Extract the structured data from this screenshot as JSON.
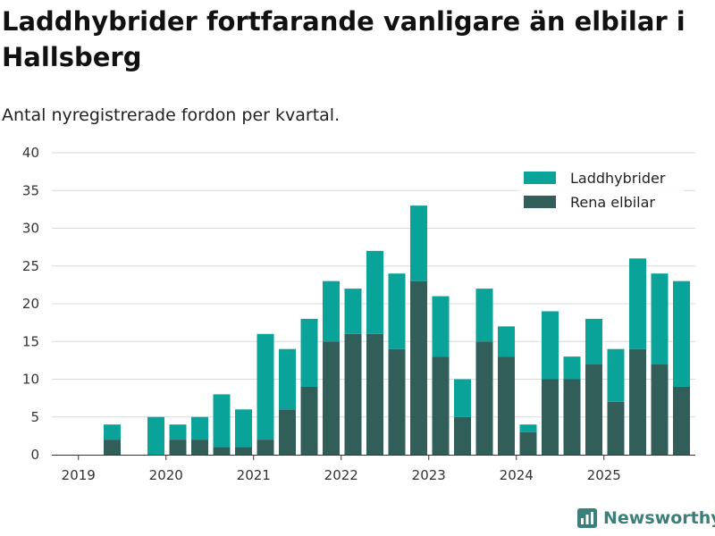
{
  "title": "Laddhybrider fortfarande vanligare än elbilar i Hallsberg",
  "subtitle": "Antal nyregistrerade fordon per kvartal.",
  "brand": "Newsworthy",
  "colors": {
    "laddhybrider": "#0aa39a",
    "elbilar": "#325e5a",
    "grid": "#d9d9d9",
    "axis": "#333333",
    "brand": "#3a7f79"
  },
  "chart_data": {
    "type": "bar",
    "stacked": true,
    "categories": [
      "2019 Q1",
      "2019 Q2",
      "2019 Q3",
      "2019 Q4",
      "2020 Q1",
      "2020 Q2",
      "2020 Q3",
      "2020 Q4",
      "2021 Q1",
      "2021 Q2",
      "2021 Q3",
      "2021 Q4",
      "2022 Q1",
      "2022 Q2",
      "2022 Q3",
      "2022 Q4",
      "2023 Q1",
      "2023 Q2",
      "2023 Q3",
      "2023 Q4",
      "2024 Q1",
      "2024 Q2",
      "2024 Q3",
      "2024 Q4",
      "2025 Q1",
      "2025 Q2",
      "2025 Q3",
      "2025 Q4"
    ],
    "series": [
      {
        "name": "Rena elbilar",
        "values": [
          0,
          2,
          0,
          0,
          2,
          2,
          1,
          1,
          2,
          6,
          9,
          15,
          16,
          16,
          14,
          23,
          13,
          5,
          15,
          13,
          3,
          10,
          10,
          12,
          7,
          14,
          12,
          9
        ]
      },
      {
        "name": "Laddhybrider",
        "values": [
          0,
          2,
          0,
          5,
          2,
          3,
          7,
          5,
          14,
          8,
          9,
          8,
          6,
          11,
          10,
          10,
          8,
          5,
          7,
          4,
          1,
          9,
          3,
          6,
          7,
          12,
          12,
          14
        ]
      }
    ],
    "xticks": [
      {
        "label": "2019",
        "pos": 0
      },
      {
        "label": "2020",
        "pos": 4
      },
      {
        "label": "2021",
        "pos": 8
      },
      {
        "label": "2022",
        "pos": 12
      },
      {
        "label": "2023",
        "pos": 16
      },
      {
        "label": "2024",
        "pos": 20
      },
      {
        "label": "2025",
        "pos": 24
      }
    ],
    "yticks": [
      "0",
      "5",
      "10",
      "15",
      "20",
      "25",
      "30",
      "35",
      "40"
    ],
    "ylim": [
      0,
      40
    ],
    "legend": [
      "Laddhybrider",
      "Rena elbilar"
    ],
    "legend_position": "top-right",
    "xlabel": "",
    "ylabel": "",
    "grid": true
  }
}
